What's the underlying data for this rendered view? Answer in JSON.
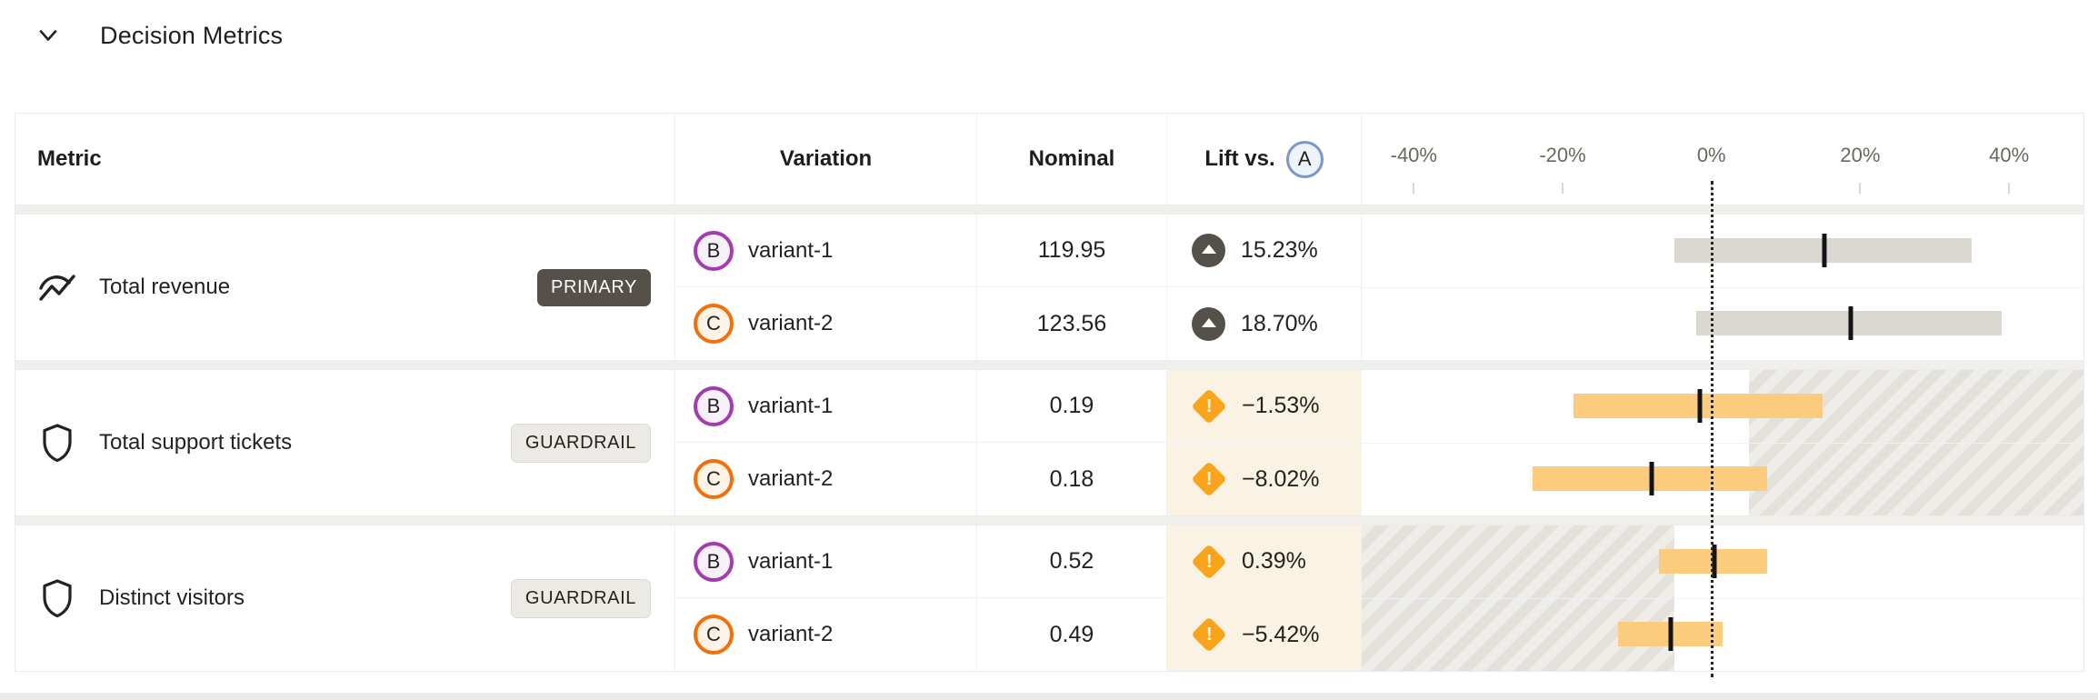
{
  "section": {
    "title": "Decision Metrics",
    "collapse_icon": "chevron-down-icon"
  },
  "header": {
    "metric": "Metric",
    "variation": "Variation",
    "nominal": "Nominal",
    "lift_prefix": "Lift vs.",
    "baseline_variation": "A"
  },
  "axis": {
    "min": -47,
    "max": 50,
    "zero_value": 0,
    "unit": "%",
    "ticks": [
      {
        "label": "-40%",
        "value": -40
      },
      {
        "label": "-20%",
        "value": -20
      },
      {
        "label": "0%",
        "value": 0
      },
      {
        "label": "20%",
        "value": 20
      },
      {
        "label": "40%",
        "value": 40
      }
    ]
  },
  "groups": [
    {
      "metric": {
        "name": "Total revenue",
        "icon": "trend-line-icon",
        "badge": "PRIMARY",
        "badge_type": "primary"
      },
      "rejection_region": null,
      "rows": [
        {
          "key": "B",
          "name": "variant-1",
          "nominal": "119.95",
          "lift": "15.23%",
          "lift_icon": "arrow-up-circle-icon",
          "lift_status": "improvement",
          "ci": {
            "low": -5,
            "high": 35,
            "estimate": 15.23
          },
          "bar_color": "gray"
        },
        {
          "key": "C",
          "name": "variant-2",
          "nominal": "123.56",
          "lift": "18.70%",
          "lift_icon": "arrow-up-circle-icon",
          "lift_status": "improvement",
          "ci": {
            "low": -2,
            "high": 39,
            "estimate": 18.7
          },
          "bar_color": "gray"
        }
      ]
    },
    {
      "metric": {
        "name": "Total support tickets",
        "icon": "shield-icon",
        "badge": "GUARDRAIL",
        "badge_type": "guardrail"
      },
      "rejection_region": {
        "from": 5,
        "to": 50
      },
      "rows": [
        {
          "key": "B",
          "name": "variant-1",
          "nominal": "0.19",
          "lift": "−1.53%",
          "lift_icon": "warning-diamond-icon",
          "lift_status": "warning",
          "ci": {
            "low": -18.5,
            "high": 15,
            "estimate": -1.53
          },
          "bar_color": "amber"
        },
        {
          "key": "C",
          "name": "variant-2",
          "nominal": "0.18",
          "lift": "−8.02%",
          "lift_icon": "warning-diamond-icon",
          "lift_status": "warning",
          "ci": {
            "low": -24,
            "high": 7.5,
            "estimate": -8.02
          },
          "bar_color": "amber"
        }
      ]
    },
    {
      "metric": {
        "name": "Distinct visitors",
        "icon": "shield-icon",
        "badge": "GUARDRAIL",
        "badge_type": "guardrail"
      },
      "rejection_region": {
        "from": -47,
        "to": -5
      },
      "rows": [
        {
          "key": "B",
          "name": "variant-1",
          "nominal": "0.52",
          "lift": "0.39%",
          "lift_icon": "warning-diamond-icon",
          "lift_status": "warning",
          "ci": {
            "low": -7,
            "high": 7.5,
            "estimate": 0.39
          },
          "bar_color": "amber"
        },
        {
          "key": "C",
          "name": "variant-2",
          "nominal": "0.49",
          "lift": "−5.42%",
          "lift_icon": "warning-diamond-icon",
          "lift_status": "warning",
          "ci": {
            "low": -12.5,
            "high": 1.5,
            "estimate": -5.42
          },
          "bar_color": "amber"
        }
      ]
    }
  ],
  "colors": {
    "primary_badge_bg": "#56504a",
    "guardrail_badge_bg": "#eceae4",
    "variant_b_ring": "#a23dad",
    "variant_c_ring": "#f2700c",
    "baseline_ring": "#7d96c8",
    "warning_orange": "#f9a41c",
    "warning_cell_bg": "#faf3e3",
    "bar_gray": "#dbd8d1",
    "bar_amber": "#fbcb7e",
    "zero_line": "#26251f"
  }
}
